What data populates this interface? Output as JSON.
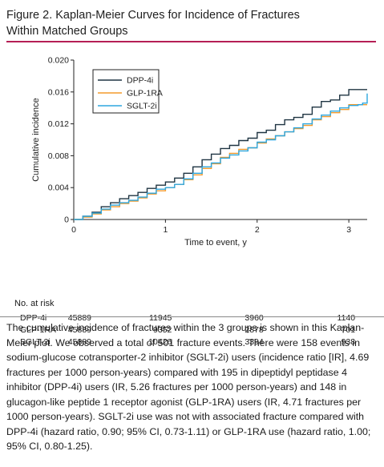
{
  "figure": {
    "title_line1": "Figure 2. Kaplan-Meier Curves for Incidence of Fractures",
    "title_line2": "Within Matched Groups"
  },
  "colors": {
    "accent_rule": "#b51f55",
    "dpp4i": "#1f3442",
    "glp1ra": "#f39a2c",
    "sglt2i": "#2ea7df"
  },
  "chart_data": {
    "type": "line",
    "xlabel": "Time to event, y",
    "ylabel": "Cumulative incidence",
    "xlim": [
      0,
      3.2
    ],
    "ylim": [
      0,
      0.02
    ],
    "xticks": [
      "0",
      "1",
      "2",
      "3"
    ],
    "yticks": [
      "0",
      "0.004",
      "0.008",
      "0.012",
      "0.016",
      "0.020"
    ],
    "legend_position": "top-left",
    "grid": false,
    "series": [
      {
        "name": "DPP-4i",
        "color": "#1f3442",
        "x": [
          0,
          0.1,
          0.2,
          0.3,
          0.4,
          0.5,
          0.6,
          0.7,
          0.8,
          0.9,
          1.0,
          1.1,
          1.2,
          1.3,
          1.4,
          1.5,
          1.6,
          1.7,
          1.8,
          1.9,
          2.0,
          2.1,
          2.2,
          2.3,
          2.4,
          2.5,
          2.6,
          2.7,
          2.8,
          2.9,
          3.0,
          3.1,
          3.2
        ],
        "values": [
          0,
          0.0004,
          0.0009,
          0.0016,
          0.0021,
          0.0026,
          0.003,
          0.0034,
          0.0039,
          0.0043,
          0.0047,
          0.0052,
          0.0058,
          0.0066,
          0.0075,
          0.0082,
          0.0089,
          0.0093,
          0.0099,
          0.0102,
          0.0109,
          0.0112,
          0.0119,
          0.0125,
          0.0128,
          0.0132,
          0.0141,
          0.0148,
          0.015,
          0.0156,
          0.0163,
          0.0163,
          0.0163
        ]
      },
      {
        "name": "GLP-1RA",
        "color": "#f39a2c",
        "x": [
          0,
          0.1,
          0.2,
          0.3,
          0.4,
          0.5,
          0.6,
          0.7,
          0.8,
          0.9,
          1.0,
          1.1,
          1.2,
          1.3,
          1.4,
          1.5,
          1.6,
          1.7,
          1.8,
          1.9,
          2.0,
          2.1,
          2.2,
          2.3,
          2.4,
          2.5,
          2.6,
          2.7,
          2.8,
          2.9,
          3.0,
          3.1,
          3.2
        ],
        "values": [
          0,
          0.0003,
          0.0007,
          0.0012,
          0.0016,
          0.002,
          0.0023,
          0.0027,
          0.0032,
          0.0036,
          0.004,
          0.0044,
          0.005,
          0.0056,
          0.0064,
          0.007,
          0.0078,
          0.0083,
          0.0088,
          0.009,
          0.0096,
          0.0101,
          0.0105,
          0.011,
          0.0114,
          0.0118,
          0.0125,
          0.0129,
          0.0134,
          0.0138,
          0.0144,
          0.0144,
          0.0144
        ]
      },
      {
        "name": "SGLT-2i",
        "color": "#2ea7df",
        "x": [
          0,
          0.1,
          0.2,
          0.3,
          0.4,
          0.5,
          0.6,
          0.7,
          0.8,
          0.9,
          1.0,
          1.1,
          1.2,
          1.3,
          1.4,
          1.5,
          1.6,
          1.7,
          1.8,
          1.9,
          2.0,
          2.1,
          2.2,
          2.3,
          2.4,
          2.5,
          2.6,
          2.7,
          2.8,
          2.9,
          3.0,
          3.1,
          3.15,
          3.2
        ],
        "values": [
          0,
          0.0004,
          0.0008,
          0.0013,
          0.0018,
          0.0021,
          0.0024,
          0.0028,
          0.0033,
          0.0038,
          0.004,
          0.0044,
          0.0051,
          0.0058,
          0.0066,
          0.0071,
          0.0077,
          0.0081,
          0.0086,
          0.009,
          0.0097,
          0.01,
          0.0105,
          0.011,
          0.0115,
          0.012,
          0.0126,
          0.0131,
          0.0136,
          0.014,
          0.0143,
          0.0144,
          0.0146,
          0.0158
        ]
      }
    ]
  },
  "risk_table": {
    "title": "No. at risk",
    "rows": [
      {
        "label": "DPP-4i",
        "values": [
          "45889",
          "11945",
          "3960",
          "1140"
        ]
      },
      {
        "label": "GLP-1RA",
        "values": [
          "45889",
          "9352",
          "2878",
          "701"
        ]
      },
      {
        "label": "SGLT-2i",
        "values": [
          "45889",
          "10426",
          "3394",
          "938"
        ]
      }
    ]
  },
  "caption": "The cumulative incidence of fractures within the 3 groups is shown in this Kaplan-Meier plot. We observed a total of 501 fracture events. There were 158 events in sodium-glucose cotransporter-2 inhibitor (SGLT-2i) users (incidence ratio [IR], 4.69 fractures per 1000 person-years) compared with 195 in dipeptidyl peptidase 4 inhibitor (DPP-4i) users (IR, 5.26 fractures per 1000 person-years) and 148 in glucagon-like peptide 1 receptor agonist (GLP-1RA) users (IR, 4.71 fractures per 1000 person-years). SGLT-2i use was not with associated fracture compared with DPP-4i (hazard ratio, 0.90; 95% CI, 0.73-1.11) or GLP-1RA use (hazard ratio, 1.00; 95% CI, 0.80-1.25)."
}
